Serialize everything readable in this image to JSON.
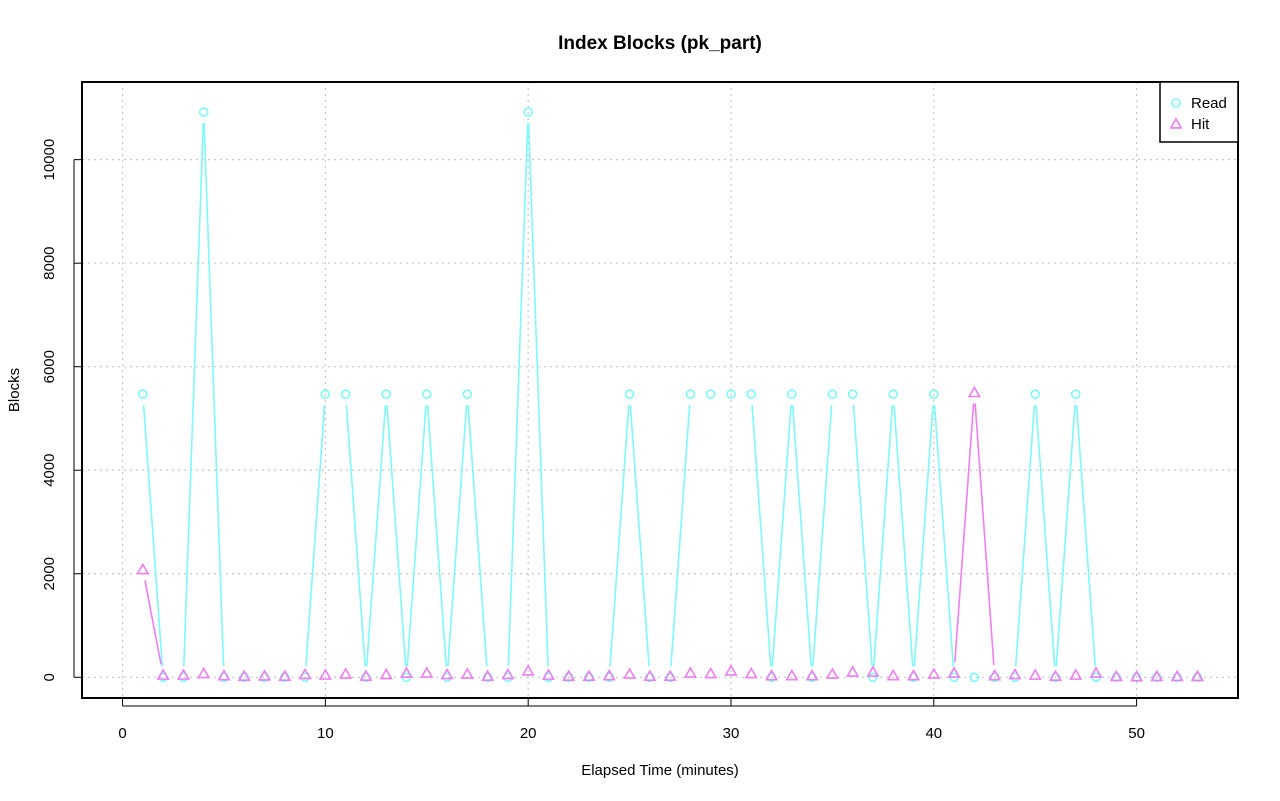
{
  "chart_data": {
    "type": "line",
    "title": "Index Blocks (pk_part)",
    "xlabel": "Elapsed Time (minutes)",
    "ylabel": "Blocks",
    "xlim": [
      -2,
      55
    ],
    "ylim": [
      -400,
      11500
    ],
    "x_ticks": [
      0,
      10,
      20,
      30,
      40,
      50
    ],
    "y_ticks": [
      0,
      2000,
      4000,
      6000,
      8000,
      10000
    ],
    "grid": true,
    "legend_position": "top-right",
    "x": [
      1,
      2,
      3,
      4,
      5,
      6,
      7,
      8,
      9,
      10,
      11,
      12,
      13,
      14,
      15,
      16,
      17,
      18,
      19,
      20,
      21,
      22,
      23,
      24,
      25,
      26,
      27,
      28,
      29,
      30,
      31,
      32,
      33,
      34,
      35,
      36,
      37,
      38,
      39,
      40,
      41,
      42,
      43,
      44,
      45,
      46,
      47,
      48,
      49,
      50,
      51,
      52,
      53
    ],
    "series": [
      {
        "name": "Read",
        "color": "#7ff8f8",
        "marker": "circle",
        "values": [
          5470,
          0,
          0,
          10920,
          0,
          0,
          0,
          0,
          0,
          5470,
          5470,
          0,
          5470,
          0,
          5470,
          0,
          5470,
          0,
          0,
          10920,
          0,
          0,
          0,
          0,
          5470,
          0,
          0,
          5470,
          5470,
          5470,
          5470,
          0,
          5470,
          0,
          5470,
          5470,
          0,
          5470,
          0,
          5470,
          0,
          0,
          0,
          0,
          5470,
          0,
          5470,
          0,
          0,
          0,
          0,
          0,
          0
        ]
      },
      {
        "name": "Hit",
        "color": "#ee7ff0",
        "marker": "triangle",
        "values": [
          2080,
          40,
          40,
          70,
          30,
          20,
          25,
          20,
          50,
          40,
          60,
          20,
          50,
          80,
          80,
          50,
          60,
          20,
          50,
          120,
          40,
          20,
          20,
          30,
          60,
          20,
          20,
          80,
          70,
          120,
          70,
          30,
          30,
          30,
          60,
          100,
          100,
          30,
          30,
          60,
          80,
          5500,
          30,
          50,
          40,
          20,
          40,
          80,
          15,
          10,
          15,
          15,
          15
        ]
      }
    ]
  }
}
